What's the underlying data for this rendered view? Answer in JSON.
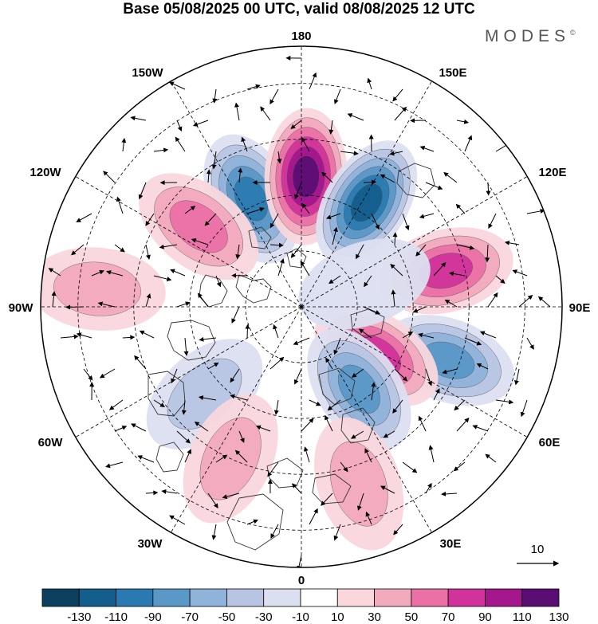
{
  "title": "Base 05/08/2025 00 UTC, valid 08/08/2025 12 UTC",
  "brand": "MODES",
  "brand_mark": "©",
  "longitude_labels": {
    "n180": "180",
    "w150": "150W",
    "e150": "150E",
    "w120": "120W",
    "e120": "120E",
    "w90": "90W",
    "e90": "90E",
    "w60": "60W",
    "e60": "60E",
    "w30": "30W",
    "e30": "30E",
    "zero": "0"
  },
  "vector_scale_label": "10",
  "colorbar": {
    "ticks": [
      "-130",
      "-110",
      "-90",
      "-70",
      "-50",
      "-30",
      "-10",
      "10",
      "30",
      "50",
      "70",
      "90",
      "110",
      "130"
    ],
    "colors": [
      "#0c3f5e",
      "#135e8c",
      "#2a7ab1",
      "#5a98c8",
      "#8fb3d9",
      "#b7c5e3",
      "#dcdff0",
      "#ffffff",
      "#f9d7dd",
      "#f2aabd",
      "#ea70a6",
      "#d2339a",
      "#a3168c",
      "#5a0e74"
    ]
  },
  "anomaly_centers": [
    {
      "lon": -155,
      "lat": 58,
      "value": -80
    },
    {
      "lon": 178,
      "lat": 55,
      "value": 115
    },
    {
      "lon": 148,
      "lat": 57,
      "value": -100
    },
    {
      "lon": 104,
      "lat": 50,
      "value": 75
    },
    {
      "lon": 70,
      "lat": 48,
      "value": -65
    },
    {
      "lon": 57,
      "lat": 66,
      "value": 60
    },
    {
      "lon": 35,
      "lat": 63,
      "value": -65
    },
    {
      "lon": 18,
      "lat": 40,
      "value": 30
    },
    {
      "lon": -128,
      "lat": 55,
      "value": 40
    },
    {
      "lon": -95,
      "lat": 35,
      "value": 25
    },
    {
      "lon": -48,
      "lat": 55,
      "value": -35
    },
    {
      "lon": -25,
      "lat": 45,
      "value": 30
    },
    {
      "lon": 110,
      "lat": 72,
      "value": -15
    }
  ]
}
